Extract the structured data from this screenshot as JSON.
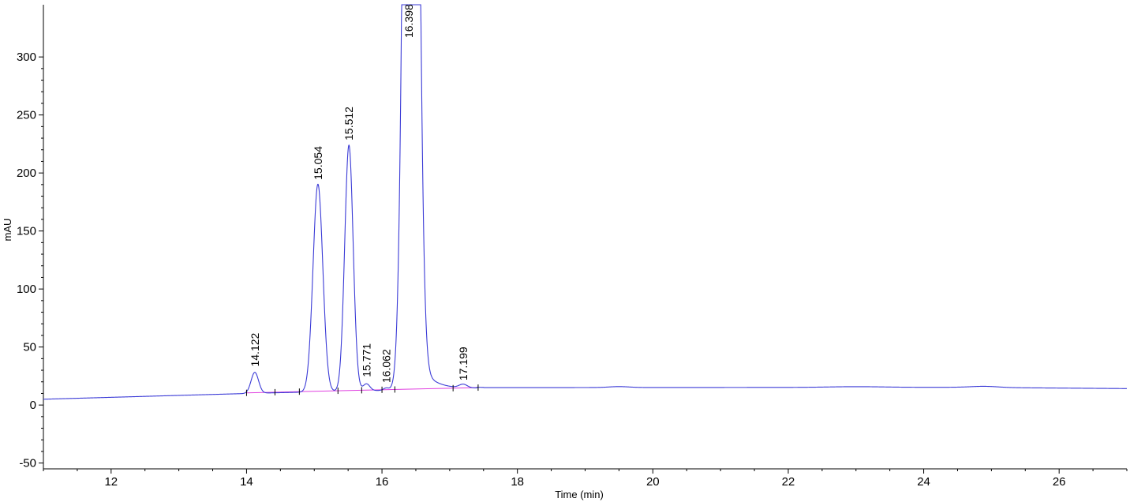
{
  "chart_data": {
    "type": "line",
    "title": "",
    "xlabel": "Time (min)",
    "ylabel": "mAU",
    "xlim": [
      11.0,
      27.0
    ],
    "ylim": [
      -55,
      345
    ],
    "x_ticks": [
      12,
      14,
      16,
      18,
      20,
      22,
      24,
      26
    ],
    "y_ticks": [
      -50,
      0,
      50,
      100,
      150,
      200,
      250,
      300
    ],
    "grid": false,
    "colors": {
      "signal": "#3a3ad6",
      "baseline": "#e040e0",
      "axis": "#000000"
    },
    "baseline": {
      "x": [
        14.0,
        17.4
      ],
      "y": [
        10.5,
        15.0
      ]
    },
    "peaks": [
      {
        "label": "14.122",
        "x": 14.122,
        "y": 29
      },
      {
        "label": "15.054",
        "x": 15.054,
        "y": 190
      },
      {
        "label": "15.512",
        "x": 15.512,
        "y": 224
      },
      {
        "label": "15.771",
        "x": 15.771,
        "y": 20
      },
      {
        "label": "16.062",
        "x": 16.062,
        "y": 15
      },
      {
        "label": "16.398",
        "x": 16.398,
        "y": 345
      },
      {
        "label": "17.199",
        "x": 17.199,
        "y": 17
      }
    ]
  }
}
